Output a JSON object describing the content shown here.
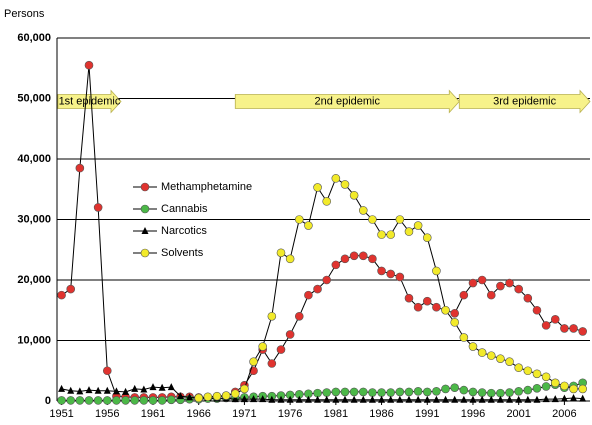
{
  "chart_data": {
    "type": "line",
    "y_label": "Persons",
    "x": [
      1951,
      1952,
      1953,
      1954,
      1955,
      1956,
      1957,
      1958,
      1959,
      1960,
      1961,
      1962,
      1963,
      1964,
      1965,
      1966,
      1967,
      1968,
      1969,
      1970,
      1971,
      1972,
      1973,
      1974,
      1975,
      1976,
      1977,
      1978,
      1979,
      1980,
      1981,
      1982,
      1983,
      1984,
      1985,
      1986,
      1987,
      1988,
      1989,
      1990,
      1991,
      1992,
      1993,
      1994,
      1995,
      1996,
      1997,
      1998,
      1999,
      2000,
      2001,
      2002,
      2003,
      2004,
      2005,
      2006,
      2007,
      2008
    ],
    "series": [
      {
        "name": "Methamphetamine",
        "color": "#e0332f",
        "marker": "circle",
        "values": [
          17500,
          18500,
          38500,
          55500,
          32000,
          5000,
          800,
          700,
          600,
          600,
          600,
          600,
          700,
          700,
          700,
          600,
          600,
          700,
          800,
          1500,
          2600,
          5000,
          8500,
          6200,
          8500,
          11000,
          14000,
          17500,
          18500,
          20000,
          22500,
          23500,
          24000,
          24000,
          23500,
          21500,
          21000,
          20500,
          17000,
          15500,
          16500,
          15500,
          15000,
          14500,
          17500,
          19500,
          20000,
          17500,
          19000,
          19500,
          18500,
          17000,
          15000,
          12500,
          13500,
          12000,
          12000,
          11500
        ]
      },
      {
        "name": "Cannabis",
        "color": "#4cb848",
        "marker": "circle",
        "values": [
          100,
          100,
          100,
          100,
          100,
          100,
          100,
          100,
          100,
          100,
          100,
          100,
          200,
          200,
          300,
          300,
          400,
          400,
          500,
          500,
          600,
          700,
          800,
          800,
          900,
          1000,
          1100,
          1200,
          1300,
          1400,
          1500,
          1500,
          1500,
          1500,
          1400,
          1400,
          1400,
          1500,
          1500,
          1600,
          1500,
          1600,
          2000,
          2200,
          1800,
          1500,
          1400,
          1300,
          1300,
          1400,
          1600,
          1800,
          2100,
          2400,
          2700,
          2200,
          2500,
          3000
        ]
      },
      {
        "name": "Narcotics",
        "color": "#000000",
        "marker": "triangle",
        "values": [
          2000,
          1700,
          1600,
          1800,
          1700,
          1700,
          1600,
          1500,
          2000,
          1900,
          2300,
          2200,
          2300,
          800,
          600,
          500,
          500,
          400,
          400,
          300,
          300,
          300,
          300,
          200,
          200,
          200,
          200,
          200,
          200,
          200,
          200,
          200,
          200,
          200,
          200,
          200,
          200,
          200,
          200,
          200,
          200,
          200,
          200,
          200,
          200,
          200,
          200,
          200,
          200,
          200,
          200,
          200,
          200,
          300,
          300,
          400,
          500,
          400
        ]
      },
      {
        "name": "Solvents",
        "color": "#f2ea2a",
        "marker": "circle",
        "values": [
          null,
          null,
          null,
          null,
          null,
          null,
          null,
          null,
          null,
          null,
          null,
          null,
          null,
          null,
          null,
          500,
          700,
          800,
          900,
          1200,
          2000,
          6500,
          9000,
          14000,
          24500,
          23500,
          30000,
          29000,
          35300,
          33000,
          36800,
          35800,
          34000,
          31500,
          30000,
          27500,
          27500,
          30000,
          28000,
          29000,
          27000,
          21500,
          15000,
          13000,
          10500,
          9000,
          8000,
          7500,
          7000,
          6500,
          5500,
          5000,
          4500,
          4000,
          3000,
          2500,
          2000,
          2000
        ]
      }
    ],
    "annotations": [
      {
        "label": "1st epidemic",
        "x": [
          1950.6,
          1957.5
        ]
      },
      {
        "label": "2nd epidemic",
        "x": [
          1970,
          1994.5
        ]
      },
      {
        "label": "3rd epidemic",
        "x": [
          1994.5,
          2008.8
        ]
      }
    ],
    "xlim": [
      1950.5,
      2008.8
    ],
    "xticks": [
      1951,
      1956,
      1961,
      1966,
      1971,
      1976,
      1981,
      1986,
      1991,
      1996,
      2001,
      2006
    ],
    "ylim": [
      0,
      60000
    ],
    "yticks": [
      0,
      {
        "value": 10000,
        "label": "10,000"
      },
      {
        "value": 20000,
        "label": "20,000"
      },
      {
        "value": 30000,
        "label": "30,000"
      },
      {
        "value": 40000,
        "label": "40,000"
      },
      {
        "value": 50000,
        "label": "50,000"
      },
      {
        "value": 60000,
        "label": "60,000"
      }
    ],
    "grid": true
  }
}
